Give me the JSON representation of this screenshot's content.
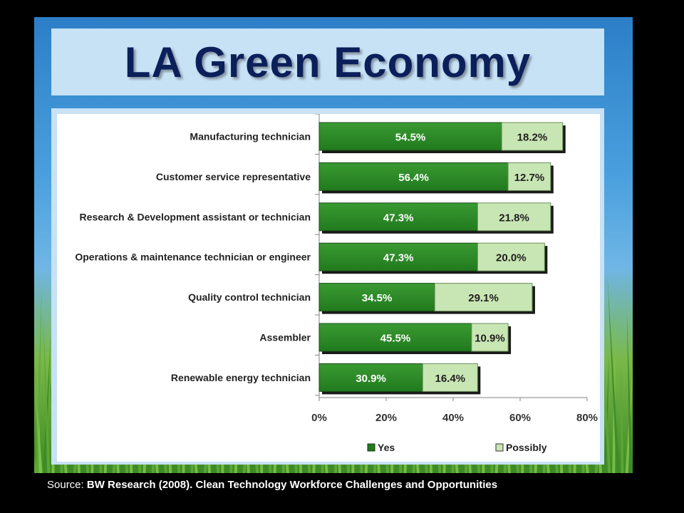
{
  "slide": {
    "title": "LA Green Economy",
    "source_prefix": "Source: ",
    "source_text": "BW Research (2008). Clean Technology Workforce Challenges and Opportunities"
  },
  "colors": {
    "yes": "#217a1e",
    "yes_light": "#3a9a32",
    "possibly": "#c8e6b4",
    "title": "#0b1f5a"
  },
  "chart_data": {
    "type": "bar",
    "orientation": "horizontal",
    "stacked": true,
    "categories": [
      "Manufacturing technician",
      "Customer service representative",
      "Research & Development assistant or technician",
      "Operations & maintenance technician or engineer",
      "Quality control technician",
      "Assembler",
      "Renewable energy technician"
    ],
    "series": [
      {
        "name": "Yes",
        "values": [
          54.5,
          56.4,
          47.3,
          47.3,
          34.5,
          45.5,
          30.9
        ],
        "labels": [
          "54.5%",
          "56.4%",
          "47.3%",
          "47.3%",
          "34.5%",
          "45.5%",
          "30.9%"
        ]
      },
      {
        "name": "Possibly",
        "values": [
          18.2,
          12.7,
          21.8,
          20.0,
          29.1,
          10.9,
          16.4
        ],
        "labels": [
          "18.2%",
          "12.7%",
          "21.8%",
          "20.0%",
          "29.1%",
          "10.9%",
          "16.4%"
        ]
      }
    ],
    "xlim": [
      0,
      80
    ],
    "xticks": [
      "0%",
      "20%",
      "40%",
      "60%",
      "80%"
    ],
    "grid": false,
    "legend": "bottom"
  }
}
